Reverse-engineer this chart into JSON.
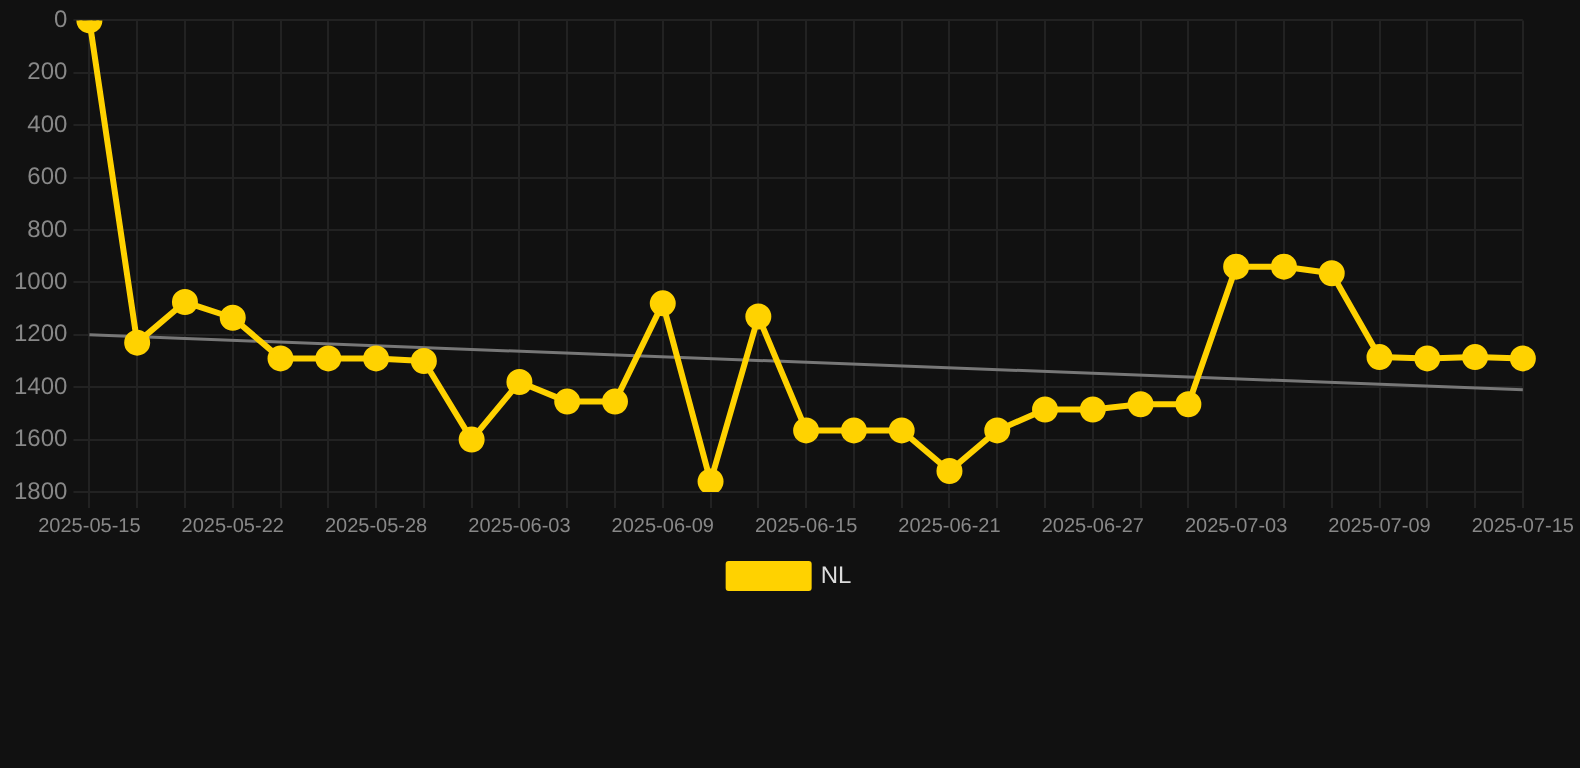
{
  "chart_data": {
    "type": "line",
    "categories": [
      "2025-05-15",
      null,
      null,
      "2025-05-22",
      null,
      null,
      "2025-05-28",
      null,
      null,
      "2025-06-03",
      null,
      null,
      "2025-06-09",
      null,
      null,
      "2025-06-15",
      null,
      null,
      "2025-06-21",
      null,
      null,
      "2025-06-27",
      null,
      null,
      "2025-07-03",
      null,
      null,
      "2025-07-09",
      null,
      null,
      "2025-07-15"
    ],
    "series": [
      {
        "name": "NL",
        "color": "#ffd200",
        "marker": "circle",
        "values": [
          0,
          1230,
          1075,
          1135,
          1290,
          1290,
          1290,
          1300,
          1600,
          1380,
          1455,
          1455,
          1080,
          1760,
          1130,
          1565,
          1565,
          1565,
          1720,
          1565,
          1485,
          1485,
          1465,
          1465,
          940,
          940,
          965,
          1285,
          1290,
          1285,
          1290
        ]
      },
      {
        "color": "#777777",
        "marker": "none",
        "values": [
          1200,
          null,
          null,
          null,
          null,
          null,
          null,
          null,
          null,
          null,
          null,
          null,
          null,
          null,
          null,
          null,
          null,
          null,
          null,
          null,
          null,
          null,
          null,
          null,
          null,
          null,
          null,
          null,
          null,
          null,
          1410
        ]
      }
    ],
    "ylim": [
      1800,
      0
    ],
    "yticks": [
      0,
      200,
      400,
      600,
      800,
      1000,
      1200,
      1400,
      1600,
      1800
    ],
    "grid": true,
    "legend": "bottom"
  }
}
